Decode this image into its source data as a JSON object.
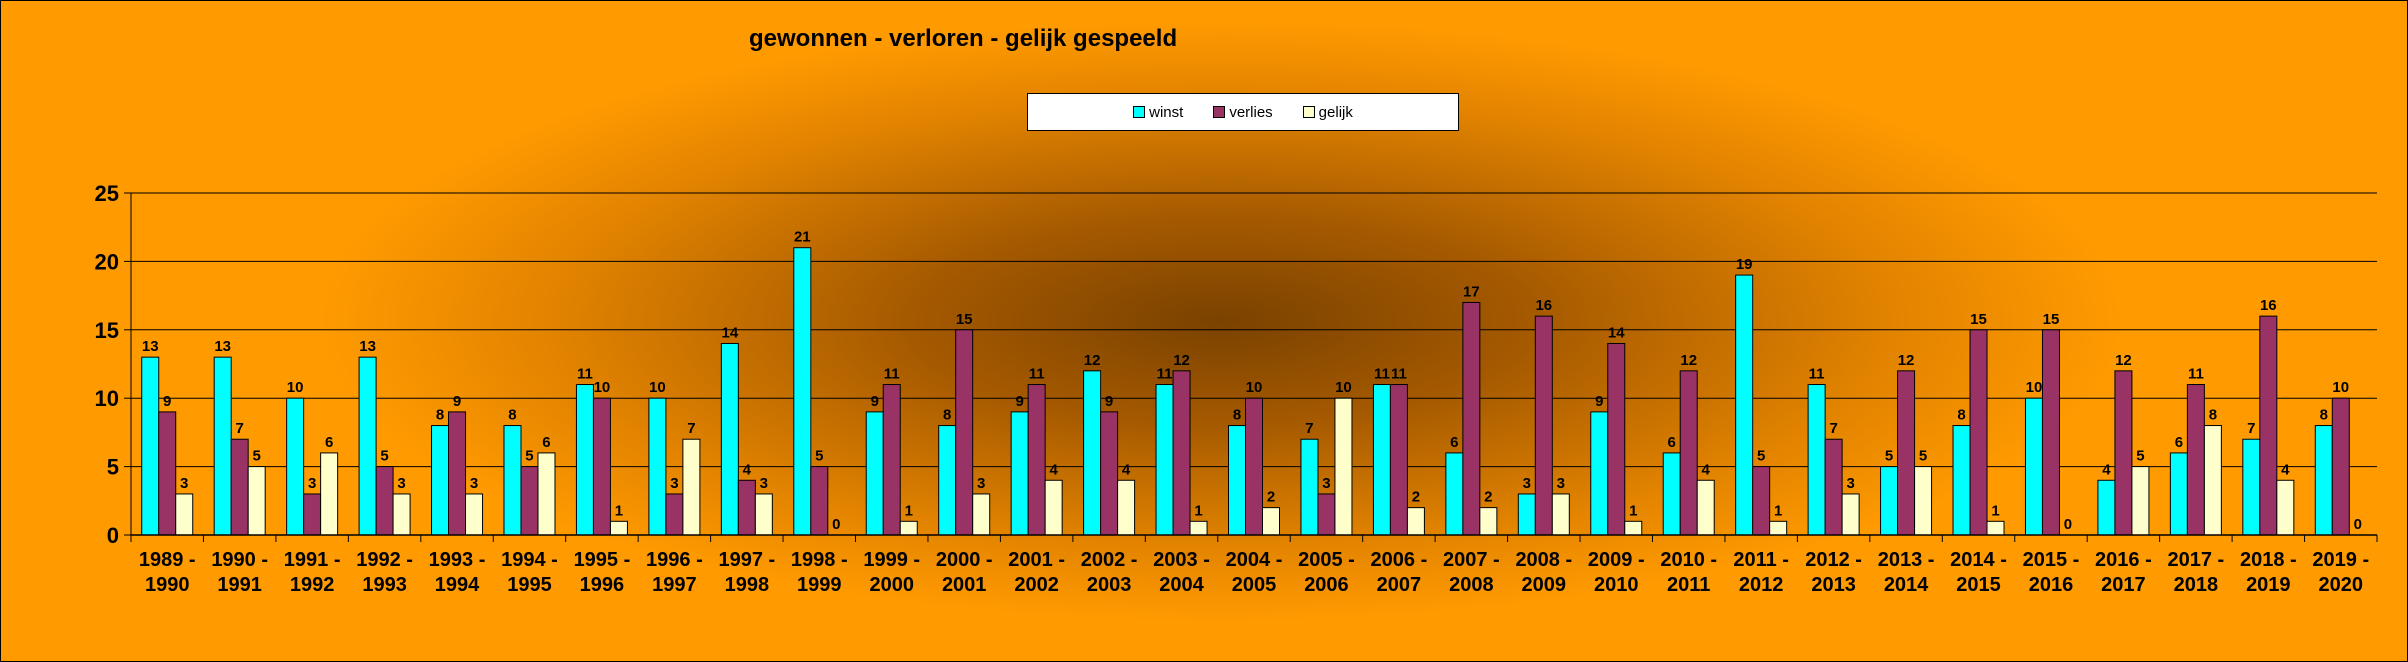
{
  "colors": {
    "winst": "#00ffff",
    "verlies": "#993366",
    "gelijk": "#ffffcc"
  },
  "chart_data": {
    "type": "bar",
    "title": "gewonnen - verloren - gelijk gespeeld",
    "xlabel": "",
    "ylabel": "",
    "ylim": [
      0,
      25
    ],
    "yticks": [
      "0",
      "5",
      "10",
      "15",
      "20",
      "25"
    ],
    "grid": true,
    "legend_position": "top",
    "categories": [
      [
        "1989 -",
        "1990"
      ],
      [
        "1990 -",
        "1991"
      ],
      [
        "1991 -",
        "1992"
      ],
      [
        "1992 -",
        "1993"
      ],
      [
        "1993 -",
        "1994"
      ],
      [
        "1994 -",
        "1995"
      ],
      [
        "1995 -",
        "1996"
      ],
      [
        "1996 -",
        "1997"
      ],
      [
        "1997 -",
        "1998"
      ],
      [
        "1998 -",
        "1999"
      ],
      [
        "1999 -",
        "2000"
      ],
      [
        "2000 -",
        "2001"
      ],
      [
        "2001 -",
        "2002"
      ],
      [
        "2002 -",
        "2003"
      ],
      [
        "2003 -",
        "2004"
      ],
      [
        "2004 -",
        "2005"
      ],
      [
        "2005 -",
        "2006"
      ],
      [
        "2006 -",
        "2007"
      ],
      [
        "2007 -",
        "2008"
      ],
      [
        "2008 -",
        "2009"
      ],
      [
        "2009 -",
        "2010"
      ],
      [
        "2010 -",
        "2011"
      ],
      [
        "2011 -",
        "2012"
      ],
      [
        "2012 -",
        "2013"
      ],
      [
        "2013 -",
        "2014"
      ],
      [
        "2014 -",
        "2015"
      ],
      [
        "2015 -",
        "2016"
      ],
      [
        "2016 -",
        "2017"
      ],
      [
        "2017 -",
        "2018"
      ],
      [
        "2018 -",
        "2019"
      ],
      [
        "2019 -",
        "2020"
      ]
    ],
    "series": [
      {
        "name": "winst",
        "values": [
          13,
          13,
          10,
          13,
          8,
          8,
          11,
          10,
          14,
          21,
          9,
          8,
          9,
          12,
          11,
          8,
          7,
          11,
          6,
          3,
          9,
          6,
          19,
          11,
          5,
          8,
          10,
          4,
          6,
          7,
          8
        ]
      },
      {
        "name": "verlies",
        "values": [
          9,
          7,
          3,
          5,
          9,
          5,
          10,
          3,
          4,
          5,
          11,
          15,
          11,
          9,
          12,
          10,
          3,
          11,
          17,
          16,
          14,
          12,
          5,
          7,
          12,
          15,
          15,
          12,
          11,
          16,
          10
        ]
      },
      {
        "name": "gelijk",
        "values": [
          3,
          5,
          6,
          3,
          3,
          6,
          1,
          7,
          3,
          0,
          1,
          3,
          4,
          4,
          1,
          2,
          10,
          2,
          2,
          3,
          1,
          4,
          1,
          3,
          5,
          1,
          0,
          5,
          8,
          4,
          0
        ]
      }
    ]
  }
}
